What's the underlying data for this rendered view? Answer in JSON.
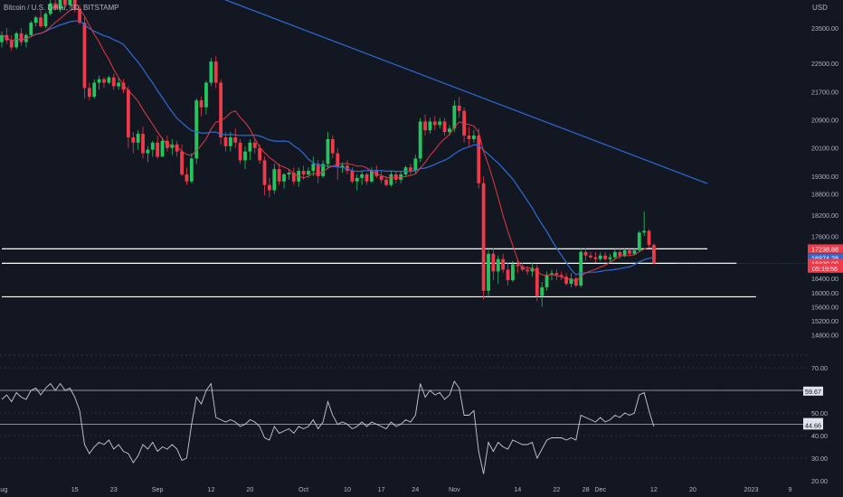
{
  "header": {
    "title": "Bitcoin / U.S. Dollar, 1D, BITSTAMP",
    "currency": "USD"
  },
  "colors": {
    "background": "#131722",
    "up": "#22c55e",
    "down": "#ef3a4a",
    "fast_ma": "#e53946",
    "slow_ma": "#2f6bd8",
    "trend": "#2f6bd8",
    "levels": "#ffffff",
    "rsi": "#c9cbd0",
    "text": "#b2b5be"
  },
  "chart_data": [
    {
      "type": "candlestick",
      "panel": "price",
      "price_scale": {
        "ticks": [
          "23500.00",
          "22500.00",
          "21700.00",
          "20900.00",
          "20100.00",
          "19300.00",
          "18800.00",
          "18200.00",
          "17600.00",
          "16400.00",
          "16000.00",
          "15600.00",
          "15200.00",
          "14800.00"
        ],
        "tick_values": [
          23500,
          22500,
          21700,
          20900,
          20100,
          19300,
          18800,
          18200,
          17600,
          16400,
          16000,
          15600,
          15200,
          14800
        ]
      },
      "x_ticks": [
        {
          "label": "Aug",
          "day": 0
        },
        {
          "label": "15",
          "day": 15
        },
        {
          "label": "23",
          "day": 23
        },
        {
          "label": "Sep",
          "day": 32
        },
        {
          "label": "12",
          "day": 43
        },
        {
          "label": "20",
          "day": 51
        },
        {
          "label": "Oct",
          "day": 62
        },
        {
          "label": "10",
          "day": 71
        },
        {
          "label": "17",
          "day": 78
        },
        {
          "label": "24",
          "day": 85
        },
        {
          "label": "Nov",
          "day": 93
        },
        {
          "label": "14",
          "day": 106
        },
        {
          "label": "22",
          "day": 114
        },
        {
          "label": "28",
          "day": 120
        },
        {
          "label": "Dec",
          "day": 123
        },
        {
          "label": "12",
          "day": 134
        },
        {
          "label": "20",
          "day": 142
        },
        {
          "label": "2023",
          "day": 154
        },
        {
          "label": "9",
          "day": 162
        }
      ],
      "last_day": 138,
      "price_labels": [
        {
          "value": 17238.88,
          "text": "17238.88",
          "color": "#ef3a4a"
        },
        {
          "value": 16974.28,
          "text": "16974.28",
          "color": "#2f6bd8"
        },
        {
          "value": 16830.0,
          "text": "16830.00",
          "color": "#ef3a4a"
        },
        {
          "value": 16690,
          "text": "05:19:56",
          "color": "#ef3a4a"
        }
      ],
      "horizontal_levels": [
        {
          "value": 17238.88,
          "from_day": 0,
          "to_day": 145
        },
        {
          "value": 16830.0,
          "from_day": 0,
          "to_day": 151
        },
        {
          "value": 15880.0,
          "from_day": 0,
          "to_day": 155
        }
      ],
      "trendline": {
        "from_day": 44,
        "from_price": 24400,
        "to_day": 145,
        "to_price": 19090
      },
      "ohlc": [
        [
          23100,
          23400,
          22950,
          23300
        ],
        [
          23300,
          23500,
          23050,
          23150
        ],
        [
          23150,
          23300,
          22850,
          22950
        ],
        [
          22950,
          23400,
          22900,
          23350
        ],
        [
          23350,
          23500,
          23000,
          23100
        ],
        [
          23100,
          23350,
          22950,
          23300
        ],
        [
          23300,
          23700,
          23250,
          23650
        ],
        [
          23650,
          23850,
          23550,
          23800
        ],
        [
          23800,
          24000,
          23500,
          23550
        ],
        [
          23550,
          23950,
          23500,
          23900
        ],
        [
          23900,
          24300,
          23850,
          24200
        ],
        [
          24200,
          24400,
          24000,
          24050
        ],
        [
          24050,
          24450,
          23950,
          24350
        ],
        [
          24350,
          24500,
          24100,
          24150
        ],
        [
          24150,
          24500,
          24050,
          24350
        ],
        [
          24350,
          24450,
          23950,
          24050
        ],
        [
          24050,
          24150,
          23600,
          23650
        ],
        [
          23650,
          23800,
          21500,
          21800
        ],
        [
          21800,
          21950,
          21450,
          21550
        ],
        [
          21550,
          22050,
          21500,
          21950
        ],
        [
          21950,
          22150,
          21750,
          22050
        ],
        [
          22050,
          22100,
          21800,
          21950
        ],
        [
          21950,
          22150,
          21900,
          22100
        ],
        [
          22100,
          22200,
          21750,
          21850
        ],
        [
          21850,
          22100,
          21750,
          21950
        ],
        [
          21950,
          22050,
          21650,
          21750
        ],
        [
          21750,
          21850,
          20100,
          20400
        ],
        [
          20400,
          20550,
          19950,
          20250
        ],
        [
          20250,
          20600,
          20050,
          20500
        ],
        [
          20500,
          20700,
          19800,
          19950
        ],
        [
          19950,
          20150,
          19700,
          20050
        ],
        [
          20050,
          20300,
          19850,
          20250
        ],
        [
          20250,
          20450,
          19800,
          19850
        ],
        [
          19850,
          20400,
          19850,
          20300
        ],
        [
          20300,
          20450,
          20000,
          20100
        ],
        [
          20100,
          20350,
          19900,
          20200
        ],
        [
          20200,
          20300,
          19850,
          20000
        ],
        [
          20000,
          20200,
          19300,
          19350
        ],
        [
          19350,
          19550,
          19050,
          19150
        ],
        [
          19150,
          19950,
          19100,
          19800
        ],
        [
          19800,
          21500,
          19650,
          21450
        ],
        [
          21450,
          21550,
          21000,
          21250
        ],
        [
          21250,
          22000,
          21050,
          21950
        ],
        [
          21950,
          22650,
          21850,
          22550
        ],
        [
          22550,
          22700,
          21800,
          21950
        ],
        [
          21950,
          22050,
          20200,
          20400
        ],
        [
          20400,
          20550,
          20000,
          20150
        ],
        [
          20150,
          20550,
          20000,
          20400
        ],
        [
          20400,
          20650,
          20100,
          20250
        ],
        [
          20250,
          20350,
          19650,
          19750
        ],
        [
          19750,
          20150,
          19500,
          20000
        ],
        [
          20000,
          20350,
          19750,
          20250
        ],
        [
          20250,
          20350,
          19950,
          20100
        ],
        [
          20100,
          20200,
          19650,
          19750
        ],
        [
          19750,
          19850,
          18750,
          19050
        ],
        [
          19050,
          19250,
          18700,
          18900
        ],
        [
          18900,
          19650,
          18800,
          19500
        ],
        [
          19500,
          19650,
          19050,
          19150
        ],
        [
          19150,
          19400,
          18950,
          19350
        ],
        [
          19350,
          19500,
          19200,
          19400
        ],
        [
          19400,
          19550,
          19050,
          19150
        ],
        [
          19150,
          19550,
          19000,
          19450
        ],
        [
          19450,
          19600,
          19200,
          19350
        ],
        [
          19350,
          19550,
          19250,
          19450
        ],
        [
          19450,
          19850,
          19300,
          19650
        ],
        [
          19650,
          19750,
          19100,
          19300
        ],
        [
          19300,
          19750,
          19250,
          19650
        ],
        [
          19650,
          20550,
          19500,
          20350
        ],
        [
          20350,
          20450,
          19800,
          19950
        ],
        [
          19950,
          20100,
          19200,
          19550
        ],
        [
          19550,
          19700,
          19400,
          19600
        ],
        [
          19600,
          19750,
          19350,
          19450
        ],
        [
          19450,
          19550,
          19100,
          19150
        ],
        [
          19150,
          19350,
          18900,
          19250
        ],
        [
          19250,
          19450,
          19050,
          19350
        ],
        [
          19350,
          19400,
          19050,
          19150
        ],
        [
          19150,
          19550,
          19100,
          19450
        ],
        [
          19450,
          19600,
          19250,
          19300
        ],
        [
          19300,
          19450,
          19100,
          19200
        ],
        [
          19200,
          19300,
          19000,
          19050
        ],
        [
          19050,
          19450,
          19000,
          19350
        ],
        [
          19350,
          19450,
          19100,
          19200
        ],
        [
          19200,
          19450,
          19100,
          19350
        ],
        [
          19350,
          19600,
          19300,
          19550
        ],
        [
          19550,
          19650,
          19350,
          19450
        ],
        [
          19450,
          19900,
          19350,
          19800
        ],
        [
          19800,
          20950,
          19700,
          20850
        ],
        [
          20850,
          21050,
          20450,
          20600
        ],
        [
          20600,
          20950,
          20500,
          20850
        ],
        [
          20850,
          21000,
          20600,
          20750
        ],
        [
          20750,
          20950,
          20650,
          20850
        ],
        [
          20850,
          20950,
          20450,
          20550
        ],
        [
          20550,
          20750,
          20450,
          20650
        ],
        [
          20650,
          21450,
          20550,
          21300
        ],
        [
          21300,
          21550,
          20950,
          21150
        ],
        [
          21150,
          21250,
          20250,
          20450
        ],
        [
          20450,
          20700,
          20150,
          20350
        ],
        [
          20350,
          20600,
          20250,
          20450
        ],
        [
          20450,
          20650,
          18950,
          19100
        ],
        [
          19100,
          19300,
          15800,
          16050
        ],
        [
          16050,
          17200,
          15900,
          17100
        ],
        [
          17100,
          17250,
          16350,
          16600
        ],
        [
          16600,
          17050,
          16250,
          16950
        ],
        [
          16950,
          17100,
          16550,
          16650
        ],
        [
          16650,
          16850,
          16200,
          16350
        ],
        [
          16350,
          16900,
          16300,
          16800
        ],
        [
          16800,
          16950,
          16550,
          16750
        ],
        [
          16750,
          16850,
          16600,
          16650
        ],
        [
          16650,
          16750,
          16500,
          16600
        ],
        [
          16600,
          16850,
          16450,
          16700
        ],
        [
          16700,
          16800,
          15750,
          15900
        ],
        [
          15900,
          16300,
          15600,
          16150
        ],
        [
          16150,
          16600,
          16050,
          16500
        ],
        [
          16500,
          16650,
          16350,
          16550
        ],
        [
          16550,
          16650,
          16350,
          16500
        ],
        [
          16500,
          16600,
          16350,
          16450
        ],
        [
          16450,
          16550,
          16200,
          16250
        ],
        [
          16250,
          16550,
          16150,
          16400
        ],
        [
          16400,
          16450,
          16150,
          16200
        ],
        [
          16200,
          17250,
          16150,
          17150
        ],
        [
          17150,
          17250,
          16900,
          17050
        ],
        [
          17050,
          17150,
          16950,
          17000
        ],
        [
          17000,
          17150,
          16850,
          16950
        ],
        [
          16950,
          17150,
          16900,
          17050
        ],
        [
          17050,
          17150,
          16900,
          16950
        ],
        [
          16950,
          17100,
          16850,
          17000
        ],
        [
          17000,
          17250,
          16950,
          17150
        ],
        [
          17150,
          17250,
          16950,
          17050
        ],
        [
          17050,
          17250,
          17000,
          17200
        ],
        [
          17200,
          17250,
          17050,
          17100
        ],
        [
          17100,
          17250,
          17050,
          17200
        ],
        [
          17200,
          17750,
          17150,
          17700
        ],
        [
          17700,
          18300,
          17600,
          17750
        ],
        [
          17750,
          17800,
          17300,
          17350
        ],
        [
          17350,
          17400,
          16800,
          16830
        ]
      ]
    },
    {
      "type": "line",
      "panel": "rsi",
      "scale_ticks": [
        "70.00",
        "59.67",
        "50.00",
        "45.76",
        "44.66",
        "40.00",
        "30.00",
        "20.00"
      ],
      "tick_values": [
        70,
        59.67,
        50,
        45.76,
        44.66,
        40,
        30,
        20
      ],
      "guide_lines": [
        70,
        60,
        50,
        40,
        30
      ],
      "level_lines": [
        60,
        45
      ],
      "value_labels": [
        {
          "value": 59.67,
          "text": "59.67"
        },
        {
          "value": 45.76,
          "text": "45.76"
        },
        {
          "value": 44.66,
          "text": "44.66"
        }
      ],
      "values": [
        56,
        58,
        55,
        59,
        57,
        56,
        60,
        61,
        58,
        61,
        63,
        60,
        63,
        60,
        61,
        57,
        51,
        36,
        32,
        35,
        37,
        36,
        38,
        34,
        36,
        33,
        32,
        28,
        31,
        36,
        34,
        37,
        33,
        35,
        34,
        36,
        34,
        29,
        30,
        45,
        57,
        54,
        60,
        63,
        48,
        47,
        46,
        47,
        46,
        44,
        45,
        47,
        46,
        44,
        39,
        38,
        44,
        41,
        42,
        43,
        41,
        44,
        43,
        44,
        47,
        43,
        46,
        55,
        49,
        45,
        46,
        45,
        43,
        44,
        46,
        44,
        46,
        45,
        44,
        43,
        46,
        44,
        45,
        47,
        46,
        49,
        63,
        57,
        60,
        58,
        59,
        56,
        58,
        64,
        61,
        49,
        49,
        51,
        33,
        23,
        37,
        33,
        37,
        35,
        34,
        38,
        37,
        36,
        36,
        37,
        30,
        34,
        38,
        39,
        39,
        39,
        38,
        39,
        38,
        49,
        48,
        47,
        46,
        48,
        46,
        47,
        49,
        48,
        50,
        49,
        50,
        58,
        59,
        51,
        44
      ]
    }
  ]
}
